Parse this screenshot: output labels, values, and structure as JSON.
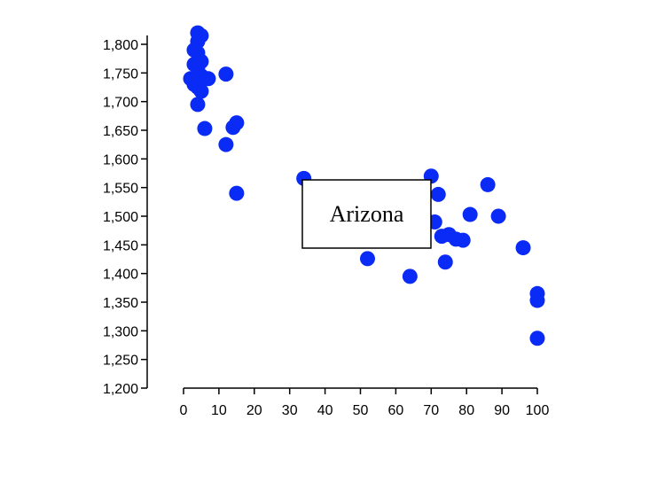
{
  "chart_data": {
    "type": "scatter",
    "title": "",
    "xlabel": "",
    "ylabel": "",
    "xlim": [
      0,
      100
    ],
    "ylim": [
      1200,
      1800
    ],
    "x_ticks": [
      0,
      10,
      20,
      30,
      40,
      50,
      60,
      70,
      80,
      90,
      100
    ],
    "y_ticks": [
      1200,
      1250,
      1300,
      1350,
      1400,
      1450,
      1500,
      1550,
      1600,
      1650,
      1700,
      1750,
      1800
    ],
    "x_tick_labels": [
      "0",
      "10",
      "20",
      "30",
      "40",
      "50",
      "60",
      "70",
      "80",
      "90",
      "100"
    ],
    "y_tick_labels": [
      "1,200",
      "1,250",
      "1,300",
      "1,350",
      "1,400",
      "1,450",
      "1,500",
      "1,550",
      "1,600",
      "1,650",
      "1,700",
      "1,750",
      "1,800"
    ],
    "point_color": "#0a2bf5",
    "grid": false,
    "points": [
      {
        "x": 4,
        "y": 1820
      },
      {
        "x": 5,
        "y": 1815
      },
      {
        "x": 4,
        "y": 1805
      },
      {
        "x": 3,
        "y": 1790
      },
      {
        "x": 4,
        "y": 1785
      },
      {
        "x": 5,
        "y": 1770
      },
      {
        "x": 3,
        "y": 1765
      },
      {
        "x": 4,
        "y": 1760
      },
      {
        "x": 2,
        "y": 1740
      },
      {
        "x": 3,
        "y": 1740
      },
      {
        "x": 5,
        "y": 1745
      },
      {
        "x": 7,
        "y": 1740
      },
      {
        "x": 3,
        "y": 1730
      },
      {
        "x": 4,
        "y": 1725
      },
      {
        "x": 5,
        "y": 1718
      },
      {
        "x": 4,
        "y": 1695
      },
      {
        "x": 12,
        "y": 1748
      },
      {
        "x": 6,
        "y": 1653
      },
      {
        "x": 15,
        "y": 1663
      },
      {
        "x": 14,
        "y": 1655
      },
      {
        "x": 12,
        "y": 1625
      },
      {
        "x": 15,
        "y": 1540
      },
      {
        "x": 34,
        "y": 1566
      },
      {
        "x": 52,
        "y": 1426
      },
      {
        "x": 64,
        "y": 1395
      },
      {
        "x": 70,
        "y": 1570
      },
      {
        "x": 72,
        "y": 1538
      },
      {
        "x": 71,
        "y": 1490
      },
      {
        "x": 73,
        "y": 1465
      },
      {
        "x": 75,
        "y": 1468
      },
      {
        "x": 77,
        "y": 1460
      },
      {
        "x": 79,
        "y": 1458
      },
      {
        "x": 74,
        "y": 1420
      },
      {
        "x": 81,
        "y": 1503
      },
      {
        "x": 86,
        "y": 1555
      },
      {
        "x": 89,
        "y": 1500
      },
      {
        "x": 96,
        "y": 1445
      },
      {
        "x": 100,
        "y": 1365
      },
      {
        "x": 100,
        "y": 1353
      },
      {
        "x": 100,
        "y": 1287
      }
    ],
    "annotation": {
      "text": "Arizona"
    }
  }
}
